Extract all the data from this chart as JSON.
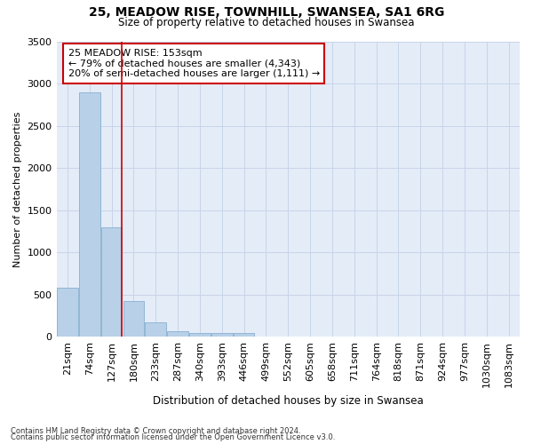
{
  "title1": "25, MEADOW RISE, TOWNHILL, SWANSEA, SA1 6RG",
  "title2": "Size of property relative to detached houses in Swansea",
  "xlabel": "Distribution of detached houses by size in Swansea",
  "ylabel": "Number of detached properties",
  "annotation_line1": "25 MEADOW RISE: 153sqm",
  "annotation_line2": "← 79% of detached houses are smaller (4,343)",
  "annotation_line3": "20% of semi-detached houses are larger (1,111) →",
  "footer1": "Contains HM Land Registry data © Crown copyright and database right 2024.",
  "footer2": "Contains public sector information licensed under the Open Government Licence v3.0.",
  "bar_color": "#b8d0e8",
  "bar_edge_color": "#88b0d0",
  "grid_color": "#c8d4e8",
  "bg_color": "#e4ecf8",
  "annotation_box_color": "#cc0000",
  "vline_color": "#cc0000",
  "categories": [
    "21sqm",
    "74sqm",
    "127sqm",
    "180sqm",
    "233sqm",
    "287sqm",
    "340sqm",
    "393sqm",
    "446sqm",
    "499sqm",
    "552sqm",
    "605sqm",
    "658sqm",
    "711sqm",
    "764sqm",
    "818sqm",
    "871sqm",
    "924sqm",
    "977sqm",
    "1030sqm",
    "1083sqm"
  ],
  "values": [
    580,
    2900,
    1300,
    420,
    170,
    70,
    50,
    50,
    50,
    0,
    0,
    0,
    0,
    0,
    0,
    0,
    0,
    0,
    0,
    0,
    0
  ],
  "ylim": [
    0,
    3500
  ],
  "yticks": [
    0,
    500,
    1000,
    1500,
    2000,
    2500,
    3000,
    3500
  ],
  "vline_bin_index": 2
}
